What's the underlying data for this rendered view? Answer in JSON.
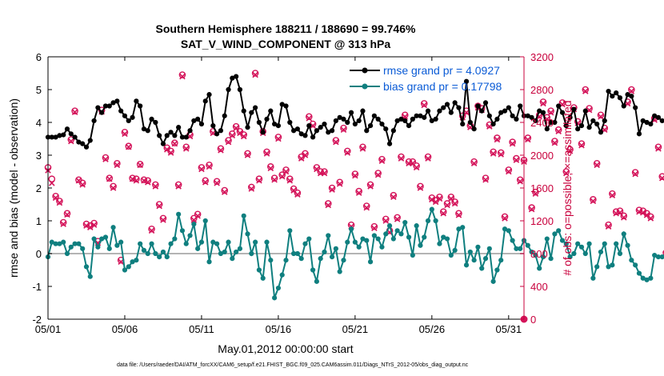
{
  "chart_data": {
    "type": "line",
    "title_line1": "Southern Hemisphere 188211 / 188690 = 99.746%",
    "title_line2": "SAT_V_WIND_COMPONENT @ 313 hPa",
    "xlabel": "May.01,2012 00:00:00 start",
    "ylabel_left": "rmse and bias (model - observation)",
    "ylabel_right": "# of obs: o=possible; ×=assimilated",
    "xlim": [
      1,
      32
    ],
    "ylim_left": [
      -2,
      6
    ],
    "ylim_right": [
      0,
      3200
    ],
    "x_tick_values": [
      1,
      6,
      11,
      16,
      21,
      26,
      31
    ],
    "x_tick_labels": [
      "05/01",
      "05/06",
      "05/11",
      "05/16",
      "05/21",
      "05/26",
      "05/31"
    ],
    "y_left_ticks": [
      -2,
      -1,
      0,
      1,
      2,
      3,
      4,
      5,
      6
    ],
    "y_right_ticks": [
      0,
      400,
      800,
      1200,
      1600,
      2000,
      2400,
      2800,
      3200
    ],
    "legend": [
      "rmse grand pr = 4.0927",
      "bias grand pr = 0.17798"
    ],
    "colors": {
      "rmse": "#000000",
      "bias": "#0f7f7f",
      "obs": "#d4145a",
      "zero": "#b4b4b4"
    },
    "series": [
      {
        "name": "rmse",
        "step_days": 0.25,
        "start": 1.0,
        "values": [
          3.55,
          3.55,
          3.55,
          3.6,
          3.62,
          3.8,
          3.65,
          3.55,
          3.4,
          3.35,
          3.25,
          3.45,
          4.05,
          4.45,
          4.3,
          4.5,
          4.5,
          4.6,
          4.65,
          4.35,
          4.2,
          4.05,
          4.15,
          4.65,
          4.5,
          3.8,
          3.75,
          4.1,
          4.0,
          3.6,
          3.35,
          3.6,
          3.7,
          3.6,
          3.85,
          3.55,
          3.55,
          3.75,
          4.05,
          4.1,
          3.95,
          4.65,
          4.85,
          3.9,
          3.65,
          3.75,
          4.2,
          5.0,
          5.35,
          5.4,
          5.0,
          4.35,
          3.85,
          4.3,
          4.45,
          4.0,
          3.7,
          4.1,
          4.35,
          3.95,
          3.9,
          4.55,
          4.5,
          4.0,
          3.75,
          3.8,
          3.65,
          3.6,
          3.9,
          3.55,
          3.75,
          3.85,
          3.95,
          3.7,
          3.75,
          4.05,
          4.15,
          4.1,
          4.0,
          4.3,
          3.95,
          4.05,
          4.35,
          3.75,
          3.9,
          4.2,
          4.1,
          3.95,
          3.8,
          3.35,
          3.75,
          4.05,
          4.1,
          4.05,
          3.9,
          4.1,
          4.2,
          4.2,
          4.15,
          4.35,
          4.05,
          4.1,
          4.35,
          4.45,
          4.55,
          4.3,
          4.6,
          4.45,
          3.95,
          5.25,
          4.0,
          3.8,
          4.5,
          4.35,
          4.6,
          4.2,
          3.95,
          4.1,
          4.3,
          4.35,
          4.45,
          4.2,
          4.1,
          4.5,
          4.2,
          4.2,
          4.15,
          4.05,
          4.35,
          4.3,
          3.8,
          4.0,
          4.0,
          4.5,
          4.3,
          3.9,
          4.15,
          4.4,
          3.8,
          3.9,
          4.35,
          3.85,
          4.05,
          3.95,
          3.7,
          4.05,
          4.95,
          4.8,
          4.9,
          4.75,
          4.5,
          4.85,
          4.8,
          4.45,
          3.65,
          4.05,
          4.0,
          3.95,
          4.2,
          4.15,
          4.05
        ]
      },
      {
        "name": "bias",
        "step_days": 0.25,
        "start": 1.0,
        "values": [
          -0.1,
          0.35,
          0.3,
          0.3,
          0.35,
          0.0,
          0.2,
          0.3,
          0.3,
          0.15,
          -0.4,
          -0.7,
          0.45,
          0.2,
          0.45,
          0.5,
          0.15,
          0.8,
          0.25,
          0.35,
          -0.5,
          -0.4,
          -0.25,
          -0.2,
          0.3,
          0.1,
          0.0,
          0.3,
          0.0,
          -0.1,
          0.05,
          -0.1,
          0.3,
          0.45,
          1.2,
          0.7,
          0.3,
          0.55,
          0.9,
          0.15,
          0.35,
          1.0,
          -0.25,
          0.35,
          0.3,
          0.0,
          0.05,
          0.35,
          -0.15,
          0.05,
          0.15,
          1.15,
          0.6,
          0.0,
          0.35,
          -0.5,
          -0.75,
          0.35,
          -0.2,
          -1.35,
          -1.05,
          -0.65,
          -0.2,
          0.7,
          0.0,
          0.0,
          -0.15,
          0.3,
          0.45,
          -0.5,
          -0.85,
          -0.15,
          0.05,
          0.55,
          -0.1,
          0.15,
          -0.55,
          -0.2,
          0.35,
          0.75,
          0.35,
          0.2,
          0.45,
          0.4,
          -0.25,
          0.55,
          0.45,
          0.2,
          0.6,
          0.85,
          0.45,
          0.7,
          0.6,
          0.95,
          0.5,
          -0.05,
          0.85,
          0.25,
          0.5,
          1.0,
          1.35,
          1.0,
          0.3,
          0.5,
          0.45,
          -0.05,
          0.1,
          0.75,
          0.8,
          -0.35,
          0.05,
          -0.2,
          0.2,
          -0.45,
          -0.15,
          0.15,
          -0.85,
          -0.5,
          -0.2,
          0.75,
          0.7,
          0.4,
          0.15,
          0.15,
          0.4,
          0.25,
          0.05,
          -0.05,
          -0.45,
          -0.1,
          0.45,
          -0.15,
          0.6,
          0.7,
          0.4,
          0.3,
          -0.1,
          0.0,
          0.3,
          0.2,
          0.0,
          0.3,
          -0.75,
          -0.4,
          0.05,
          0.3,
          -0.4,
          -0.35,
          0.3,
          0.0,
          0.6,
          0.25,
          -0.2,
          -0.35,
          -0.6,
          -0.75,
          -0.8,
          -0.75,
          -0.05,
          -0.1,
          -0.1,
          -0.05,
          -0.05,
          -0.05
        ]
      },
      {
        "name": "obs_assimilated",
        "axis": "right",
        "step_days": 0.25,
        "start": 1.0,
        "values": [
          1815,
          1660,
          1480,
          1420,
          1160,
          1275,
          2170,
          2525,
          1690,
          1640,
          1140,
          1120,
          1150,
          930,
          2530,
          1950,
          1710,
          1600,
          1880,
          700,
          2260,
          2100,
          1710,
          1690,
          1880,
          1690,
          1670,
          1080,
          1620,
          1380,
          1210,
          2070,
          2030,
          2140,
          1620,
          2960,
          2080,
          2230,
          1210,
          1260,
          1830,
          1670,
          1860,
          2270,
          1660,
          2060,
          1550,
          2160,
          2240,
          2330,
          2270,
          2230,
          2000,
          1590,
          2980,
          1690,
          2270,
          2020,
          1840,
          1700,
          2200,
          1740,
          1800,
          1690,
          1570,
          1520,
          1960,
          2000,
          2450,
          2360,
          1830,
          1780,
          1780,
          1390,
          1580,
          2160,
          1650,
          2310,
          2030,
          1130,
          1750,
          1540,
          2080,
          1360,
          1620,
          1110,
          1760,
          1930,
          1200,
          1060,
          1490,
          1220,
          1960,
          2470,
          1900,
          1900,
          1850,
          1600,
          2610,
          1960,
          1460,
          1430,
          1470,
          1290,
          1390,
          1470,
          1410,
          1270,
          2460,
          2520,
          2340,
          1900,
          2580,
          2550,
          1700,
          2350,
          2020,
          2190,
          2010,
          1230,
          1800,
          2140,
          1940,
          1680,
          1920,
          2190,
          1340,
          1530,
          2470,
          2630,
          2440,
          2520,
          2150,
          2290,
          2620,
          1780,
          2050,
          2560,
          2390,
          2120,
          2780,
          2550,
          1440,
          1880,
          2470,
          2310,
          1130,
          1510,
          1290,
          1300,
          1240,
          2630,
          2780,
          1770,
          1310,
          1300,
          1270,
          1230,
          2430,
          2080,
          1720,
          790
        ]
      },
      {
        "name": "obs_possible",
        "axis": "right",
        "step_days": 0.25,
        "start": 1.0,
        "values": [
          1850,
          1710,
          1500,
          1440,
          1180,
          1290,
          2190,
          2540,
          1700,
          1660,
          1160,
          1140,
          1170,
          950,
          2550,
          1970,
          1720,
          1620,
          1900,
          720,
          2280,
          2110,
          1720,
          1710,
          1890,
          1700,
          1690,
          1100,
          1640,
          1400,
          1230,
          2090,
          2050,
          2150,
          1640,
          2980,
          2100,
          2250,
          1230,
          1280,
          1850,
          1690,
          1880,
          2290,
          1680,
          2080,
          1570,
          2180,
          2260,
          2350,
          2290,
          2250,
          2020,
          1610,
          3000,
          1710,
          2290,
          2040,
          1860,
          1720,
          2220,
          1760,
          1820,
          1710,
          1590,
          1540,
          1980,
          2020,
          2470,
          2380,
          1850,
          1800,
          1800,
          1410,
          1600,
          2180,
          1670,
          2330,
          2050,
          1150,
          1770,
          1560,
          2100,
          1380,
          1640,
          1130,
          1780,
          1950,
          1220,
          1080,
          1510,
          1240,
          1980,
          2490,
          1920,
          1920,
          1870,
          1620,
          2630,
          1980,
          1480,
          1450,
          1490,
          1310,
          1410,
          1490,
          1430,
          1290,
          2480,
          2540,
          2360,
          1920,
          2600,
          2570,
          1720,
          2370,
          2040,
          2210,
          2030,
          1250,
          1820,
          2160,
          1960,
          1700,
          1940,
          2210,
          1360,
          1550,
          2490,
          2650,
          2460,
          2540,
          2170,
          2310,
          2640,
          1800,
          2070,
          2580,
          2410,
          2140,
          2800,
          2570,
          1460,
          1900,
          2490,
          2330,
          1150,
          1530,
          1310,
          1320,
          1260,
          2650,
          2800,
          1790,
          1330,
          1320,
          1290,
          1250,
          2450,
          2100,
          1740,
          810
        ]
      }
    ]
  },
  "footer": "data file: /Users/raeder/DAI/ATM_forcXX/CAM6_setup/f.e21.FHIST_BGC.f09_025.CAM6assim.011/Diags_NTrS_2012-05/obs_diag_output.nc"
}
